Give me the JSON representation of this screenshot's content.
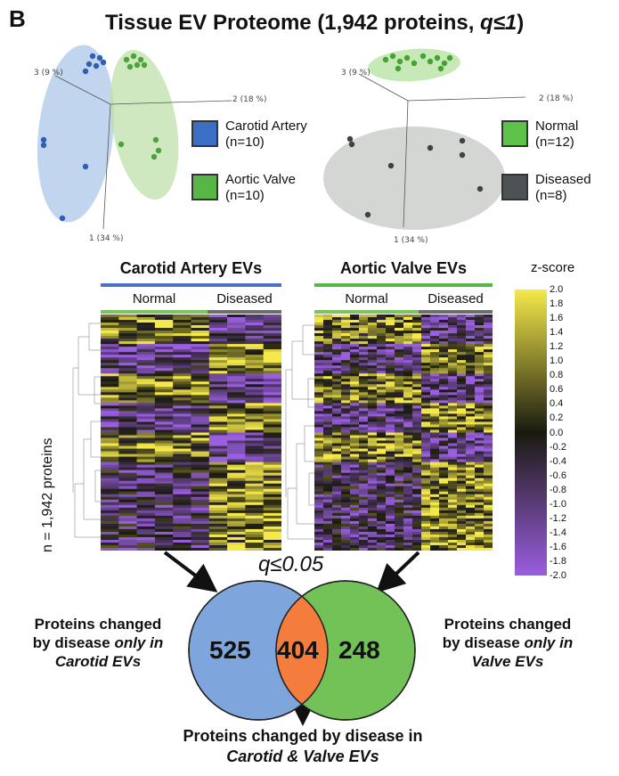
{
  "panel_letter": "B",
  "title": {
    "main": "Tissue EV Proteome (1,942 proteins, ",
    "q": "q≤1",
    "close": ")"
  },
  "pca_left": {
    "axis1": "1 (34 %)",
    "axis2": "2 (18 %)",
    "axis3": "3 (9 %)",
    "legend": [
      {
        "line1": "Carotid Artery",
        "line2": "(n=10)",
        "color": "#3b6fc6"
      },
      {
        "line1": "Aortic Valve",
        "line2": "(n=10)",
        "color": "#58b646"
      }
    ]
  },
  "pca_right": {
    "axis1": "1 (34 %)",
    "axis2": "2 (18 %)",
    "axis3": "3 (9 %)",
    "legend": [
      {
        "line1": "Normal",
        "line2": "(n=12)",
        "color": "#5cc24a"
      },
      {
        "line1": "Diseased",
        "line2": "(n=8)",
        "color": "#4d5254"
      }
    ]
  },
  "heatmaps": {
    "left": {
      "title": "Carotid Artery EVs",
      "title_color": "#4a72c9",
      "groups": [
        "Normal",
        "Diseased"
      ]
    },
    "right": {
      "title": "Aortic Valve EVs",
      "title_color": "#58b646",
      "groups": [
        "Normal",
        "Diseased"
      ]
    },
    "y_label": "n = 1,942 proteins",
    "group_colors": {
      "normal": "#7cc45e",
      "diseased": "#6d6d6d"
    }
  },
  "colorbar": {
    "title": "z-score",
    "ticks": [
      "2.0",
      "1.8",
      "1.6",
      "1.4",
      "1.2",
      "1.0",
      "0.8",
      "0.6",
      "0.4",
      "0.2",
      "0.0",
      "-0.2",
      "-0.4",
      "-0.6",
      "-0.8",
      "-1.0",
      "-1.2",
      "-1.4",
      "-1.6",
      "-1.8",
      "-2.0"
    ],
    "colors": [
      "#f5e94a",
      "#1a1a10",
      "#9a5ee0"
    ]
  },
  "venn": {
    "threshold": "q≤0.05",
    "left_only": "525",
    "overlap": "404",
    "right_only": "248",
    "colors": {
      "left": "#7ea6dc",
      "right": "#73c257",
      "overlap": "#f47c3c"
    },
    "left_text": {
      "l1": "Proteins changed",
      "l2": "by disease ",
      "l2i": "only in",
      "l3": "Carotid EVs"
    },
    "right_text": {
      "l1": "Proteins changed",
      "l2": "by disease ",
      "l2i": "only in",
      "l3": "Valve EVs"
    },
    "bottom_text": {
      "l1": "Proteins changed by disease in",
      "l2": "Carotid & Valve EVs"
    }
  }
}
